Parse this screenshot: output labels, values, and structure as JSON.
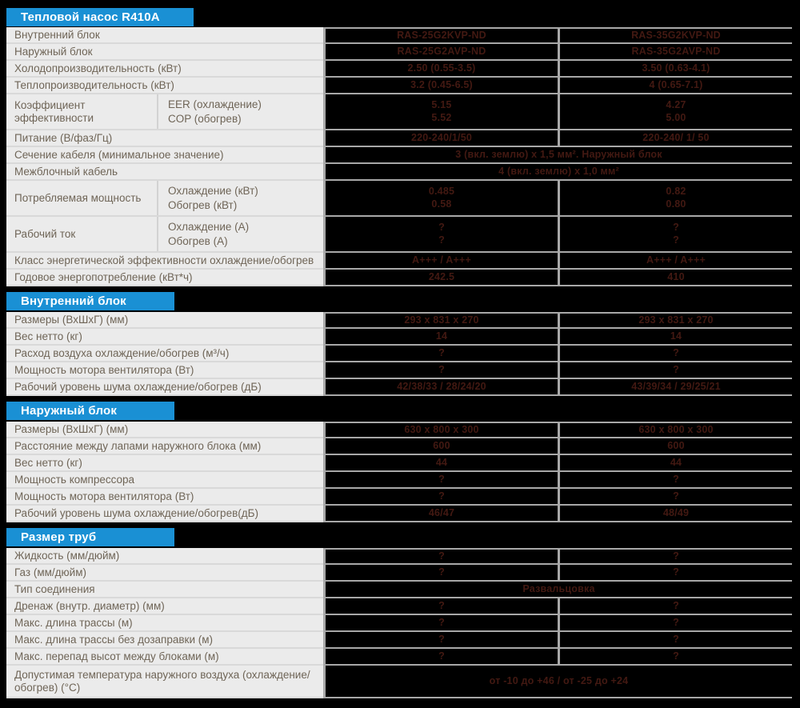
{
  "title": "Тепловой насос R410А",
  "colors": {
    "accent_blue": "#1a90d4",
    "label_bg": "#ebebeb",
    "label_text": "#6f6557",
    "value_text": "#431912",
    "grid_gray": "#a8a8a8",
    "table_bg": "#000000"
  },
  "sections": [
    {
      "header": null,
      "rows": [
        {
          "type": "simple",
          "label": "Внутренний блок",
          "values": [
            "RAS-25G2KVP-ND",
            "RAS-35G2KVP-ND"
          ]
        },
        {
          "type": "simple",
          "label": "Наружный блок",
          "values": [
            "RAS-25G2AVP-ND",
            "RAS-35G2AVP-ND"
          ]
        },
        {
          "type": "simple",
          "label": "Холодопроизводительность  (кВт)",
          "values": [
            "2.50 (0.55-3.5)",
            "3.50 (0.63-4.1)"
          ]
        },
        {
          "type": "simple",
          "label": "Теплопроизводительность (кВт)",
          "values": [
            "3.2 (0.45-6.5)",
            "4 (0.65-7.1)"
          ]
        },
        {
          "type": "split",
          "label": "Коэффициент эффективности",
          "sublabels": [
            "EER (охлаждение)",
            "COP (обогрев)"
          ],
          "values2": [
            [
              "5.15",
              "5.52"
            ],
            [
              "4.27",
              "5.00"
            ]
          ]
        },
        {
          "type": "simple",
          "label": "Питание (В/фаз/Гц)",
          "values": [
            "220-240/1/50",
            "220-240/ 1/ 50"
          ]
        },
        {
          "type": "span",
          "label": "Сечение кабеля (минимальное значение)",
          "value": "3 (вкл. землю) х 1,5 мм². Наружный блок"
        },
        {
          "type": "span",
          "label": "Межблочный кабель",
          "value": "4 (вкл. землю) х 1,0 мм²"
        },
        {
          "type": "split",
          "label": "Потребляемая мощность",
          "sublabels": [
            "Охлаждение (кВт)",
            "Обогрев (кВт)"
          ],
          "values2": [
            [
              "0.485",
              "0.58"
            ],
            [
              "0.82",
              "0.80"
            ]
          ]
        },
        {
          "type": "split",
          "label": "Рабочий ток",
          "sublabels": [
            "Охлаждение (А)",
            "Обогрев (А)"
          ],
          "values2": [
            [
              "?",
              "?"
            ],
            [
              "?",
              "?"
            ]
          ]
        },
        {
          "type": "simple",
          "label": "Класс энергетической эффективности охлаждение/обогрев",
          "values": [
            "A+++ / A+++",
            "A+++ / A+++"
          ]
        },
        {
          "type": "simple",
          "label": "Годовое энергопотребление (кВт*ч)",
          "values": [
            "242.5",
            "410"
          ]
        }
      ]
    },
    {
      "header": "Внутренний блок",
      "rows": [
        {
          "type": "simple",
          "label": "Размеры (ВхШхГ) (мм)",
          "values": [
            "293 х 831 х 270",
            "293 х 831 х 270"
          ]
        },
        {
          "type": "simple",
          "label": "Вес нетто  (кг)",
          "values": [
            "14",
            "14"
          ]
        },
        {
          "type": "simple",
          "label": "Расход воздуха  охлаждение/обогрев  (м³/ч)",
          "values": [
            "?",
            "?"
          ]
        },
        {
          "type": "simple",
          "label": "Мощность мотора вентилятора (Вт)",
          "values": [
            "?",
            "?"
          ]
        },
        {
          "type": "simple",
          "label": "Рабочий уровень шума охлаждение/обогрев (дБ)",
          "values": [
            "42/38/33 / 28/24/20",
            "43/39/34 / 29/25/21"
          ]
        }
      ]
    },
    {
      "header": "Наружный блок",
      "rows": [
        {
          "type": "simple",
          "label": "Размеры (ВхШхГ) (мм)",
          "values": [
            "630 х 800 х 300",
            "630 х 800 х 300"
          ]
        },
        {
          "type": "simple",
          "label": "Расстояние между лапами наружного блока (мм)",
          "values": [
            "600",
            "600"
          ]
        },
        {
          "type": "simple",
          "label": "Вес нетто  (кг)",
          "values": [
            "44",
            "44"
          ]
        },
        {
          "type": "simple",
          "label": "Мощность компрессора",
          "values": [
            "?",
            "?"
          ]
        },
        {
          "type": "simple",
          "label": "Мощность мотора вентилятора (Вт)",
          "values": [
            "?",
            "?"
          ]
        },
        {
          "type": "simple",
          "label": "Рабочий уровень шума охлаждение/обогрев(дБ)",
          "values": [
            "46/47",
            "48/49"
          ]
        }
      ]
    },
    {
      "header": "Размер труб",
      "rows": [
        {
          "type": "simple",
          "label": "Жидкость (мм/дюйм)",
          "values": [
            "?",
            "?"
          ]
        },
        {
          "type": "simple",
          "label": "Газ (мм/дюйм)",
          "values": [
            "?",
            "?"
          ]
        },
        {
          "type": "span",
          "label": "Тип соединения",
          "value": "Развальцовка"
        },
        {
          "type": "simple",
          "label": "Дренаж (внутр. диаметр) (мм)",
          "values": [
            "?",
            "?"
          ]
        },
        {
          "type": "simple",
          "label": "Макс. длина трассы (м)",
          "values": [
            "?",
            "?"
          ]
        },
        {
          "type": "simple",
          "label": "Макс. длина трассы без дозаправки (м)",
          "values": [
            "?",
            "?"
          ]
        },
        {
          "type": "simple",
          "label": "Макс. перепад высот между блоками (м)",
          "values": [
            "?",
            "?"
          ]
        },
        {
          "type": "span",
          "tall": true,
          "label": "Допустимая температура наружного воздуха (охлаждение/обогрев) (°C)",
          "value": "от -10 до +46 / от -25 до +24"
        }
      ]
    }
  ]
}
